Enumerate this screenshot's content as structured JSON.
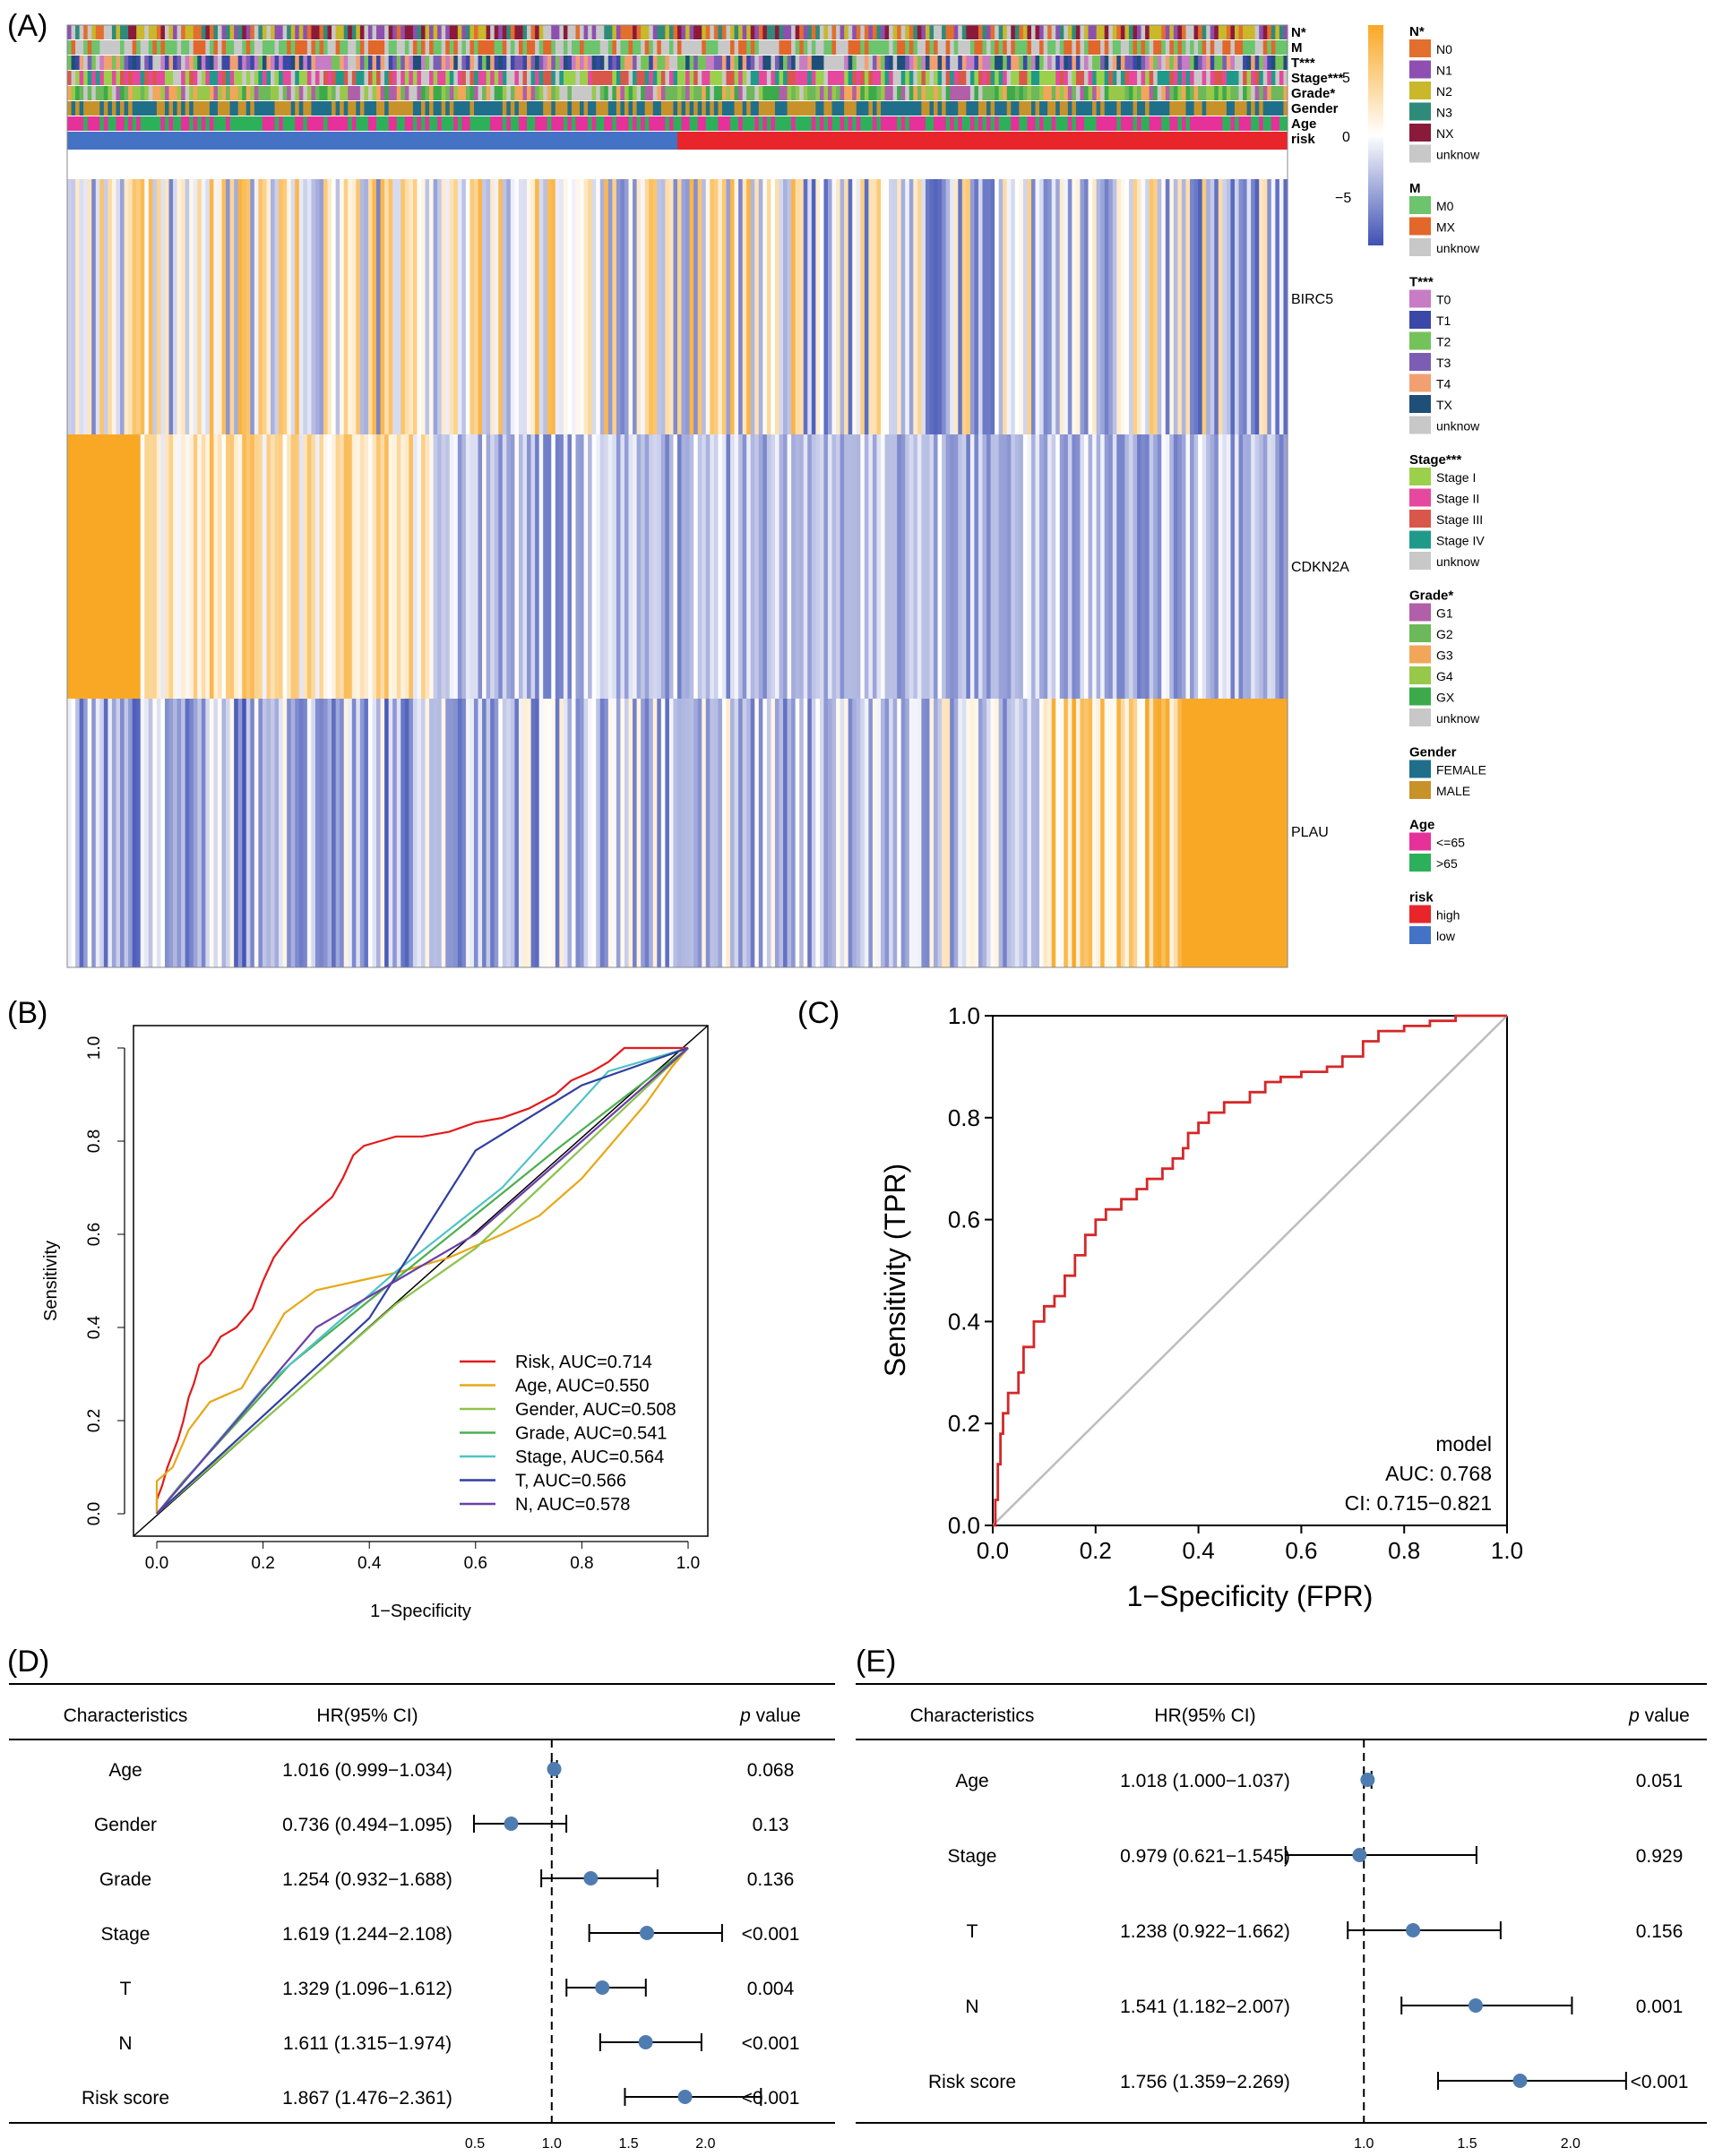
{
  "colors": {
    "hm_high": "#F9A825",
    "hm_mid": "#FFFFFF",
    "hm_low": "#3F51B5",
    "risk_high": "#E8252A",
    "risk_low": "#4472C4",
    "forest_point": "#4F7CB0",
    "roc_c": "#D62728",
    "diag_c": "#BDBDBD"
  },
  "panels": {
    "a": "(A)",
    "b": "(B)",
    "c": "(C)",
    "d": "(D)",
    "e": "(E)"
  },
  "heatmap": {
    "annotation_rows": [
      "N*",
      "M",
      "T***",
      "Stage***",
      "Grade*",
      "Gender",
      "Age",
      "risk"
    ],
    "genes": [
      "BIRC5",
      "CDKN2A",
      "PLAU"
    ],
    "colorbar_ticks": [
      "5",
      "0",
      "−5"
    ],
    "legend": [
      {
        "title": "N*",
        "items": [
          {
            "label": "N0",
            "color": "#E26F2E"
          },
          {
            "label": "N1",
            "color": "#8E4FB0"
          },
          {
            "label": "N2",
            "color": "#C8B82A"
          },
          {
            "label": "N3",
            "color": "#2E8B7A"
          },
          {
            "label": "NX",
            "color": "#8B1A3A"
          },
          {
            "label": "unknow",
            "color": "#C8C8C8"
          }
        ]
      },
      {
        "title": "M",
        "items": [
          {
            "label": "M0",
            "color": "#6CC46C"
          },
          {
            "label": "MX",
            "color": "#E2672A"
          },
          {
            "label": "unknow",
            "color": "#C8C8C8"
          }
        ]
      },
      {
        "title": "T***",
        "items": [
          {
            "label": "T0",
            "color": "#C77CC4"
          },
          {
            "label": "T1",
            "color": "#3A48A8"
          },
          {
            "label": "T2",
            "color": "#76C25A"
          },
          {
            "label": "T3",
            "color": "#7B5EB4"
          },
          {
            "label": "T4",
            "color": "#F2A072"
          },
          {
            "label": "TX",
            "color": "#1F4E79"
          },
          {
            "label": "unknow",
            "color": "#C8C8C8"
          }
        ]
      },
      {
        "title": "Stage***",
        "items": [
          {
            "label": "Stage I",
            "color": "#9BD14A"
          },
          {
            "label": "Stage II",
            "color": "#E6489E"
          },
          {
            "label": "Stage III",
            "color": "#D9574A"
          },
          {
            "label": "Stage IV",
            "color": "#1F9A8A"
          },
          {
            "label": "unknow",
            "color": "#C8C8C8"
          }
        ]
      },
      {
        "title": "Grade*",
        "items": [
          {
            "label": "G1",
            "color": "#B05FA8"
          },
          {
            "label": "G2",
            "color": "#6DB85A"
          },
          {
            "label": "G3",
            "color": "#F2A65A"
          },
          {
            "label": "G4",
            "color": "#98C84A"
          },
          {
            "label": "GX",
            "color": "#3CAA4A"
          },
          {
            "label": "unknow",
            "color": "#C8C8C8"
          }
        ]
      },
      {
        "title": "Gender",
        "items": [
          {
            "label": "FEMALE",
            "color": "#1F6F8B"
          },
          {
            "label": "MALE",
            "color": "#C8922A"
          }
        ]
      },
      {
        "title": "Age",
        "items": [
          {
            "label": "<=65",
            "color": "#E6309A"
          },
          {
            "label": ">65",
            "color": "#2DB05A"
          }
        ]
      },
      {
        "title": "risk",
        "items": [
          {
            "label": "high",
            "color": "#E8252A"
          },
          {
            "label": "low",
            "color": "#4472C4"
          }
        ]
      }
    ]
  },
  "chart_data": [
    {
      "id": "roc_b",
      "type": "line",
      "xlabel": "1−Specificity",
      "ylabel": "Sensitivity",
      "xlim": [
        0,
        1
      ],
      "ylim": [
        0,
        1
      ],
      "xticks": [
        "0.0",
        "0.2",
        "0.4",
        "0.6",
        "0.8",
        "1.0"
      ],
      "yticks": [
        "0.0",
        "0.2",
        "0.4",
        "0.6",
        "0.8",
        "1.0"
      ],
      "legend_position": "bottom-right",
      "series": [
        {
          "name": "Risk, AUC=0.714",
          "color": "#E31A1C",
          "points": [
            [
              0,
              0
            ],
            [
              0,
              0.03
            ],
            [
              0.01,
              0.06
            ],
            [
              0.02,
              0.1
            ],
            [
              0.03,
              0.13
            ],
            [
              0.04,
              0.16
            ],
            [
              0.05,
              0.2
            ],
            [
              0.06,
              0.25
            ],
            [
              0.07,
              0.28
            ],
            [
              0.08,
              0.32
            ],
            [
              0.1,
              0.34
            ],
            [
              0.12,
              0.38
            ],
            [
              0.15,
              0.4
            ],
            [
              0.18,
              0.44
            ],
            [
              0.2,
              0.5
            ],
            [
              0.22,
              0.55
            ],
            [
              0.24,
              0.58
            ],
            [
              0.27,
              0.62
            ],
            [
              0.3,
              0.65
            ],
            [
              0.33,
              0.68
            ],
            [
              0.35,
              0.72
            ],
            [
              0.37,
              0.77
            ],
            [
              0.39,
              0.79
            ],
            [
              0.42,
              0.8
            ],
            [
              0.45,
              0.81
            ],
            [
              0.5,
              0.81
            ],
            [
              0.55,
              0.82
            ],
            [
              0.6,
              0.84
            ],
            [
              0.65,
              0.85
            ],
            [
              0.7,
              0.87
            ],
            [
              0.75,
              0.9
            ],
            [
              0.78,
              0.93
            ],
            [
              0.82,
              0.95
            ],
            [
              0.85,
              0.97
            ],
            [
              0.88,
              1.0
            ],
            [
              1.0,
              1.0
            ]
          ]
        },
        {
          "name": "Age, AUC=0.550",
          "color": "#E6A817",
          "points": [
            [
              0,
              0
            ],
            [
              0,
              0.07
            ],
            [
              0.03,
              0.1
            ],
            [
              0.06,
              0.18
            ],
            [
              0.1,
              0.24
            ],
            [
              0.16,
              0.27
            ],
            [
              0.24,
              0.43
            ],
            [
              0.3,
              0.48
            ],
            [
              0.38,
              0.5
            ],
            [
              0.46,
              0.52
            ],
            [
              0.55,
              0.55
            ],
            [
              0.65,
              0.6
            ],
            [
              0.72,
              0.64
            ],
            [
              0.8,
              0.72
            ],
            [
              0.86,
              0.8
            ],
            [
              0.92,
              0.88
            ],
            [
              0.97,
              0.96
            ],
            [
              1.0,
              1.0
            ]
          ]
        },
        {
          "name": "Gender, AUC=0.508",
          "color": "#8BC34A",
          "points": [
            [
              0,
              0
            ],
            [
              0.45,
              0.45
            ],
            [
              0.6,
              0.57
            ],
            [
              1.0,
              1.0
            ]
          ]
        },
        {
          "name": "Grade, AUC=0.541",
          "color": "#4CAF50",
          "points": [
            [
              0,
              0
            ],
            [
              0.05,
              0.07
            ],
            [
              0.25,
              0.32
            ],
            [
              0.5,
              0.55
            ],
            [
              0.75,
              0.78
            ],
            [
              1.0,
              1.0
            ]
          ]
        },
        {
          "name": "Stage, AUC=0.564",
          "color": "#4FC3C8",
          "points": [
            [
              0,
              0
            ],
            [
              0.2,
              0.27
            ],
            [
              0.45,
              0.52
            ],
            [
              0.65,
              0.7
            ],
            [
              0.85,
              0.95
            ],
            [
              1.0,
              1.0
            ]
          ]
        },
        {
          "name": "T, AUC=0.566",
          "color": "#2F3FA0",
          "points": [
            [
              0,
              0
            ],
            [
              0.4,
              0.42
            ],
            [
              0.6,
              0.78
            ],
            [
              0.8,
              0.92
            ],
            [
              1.0,
              1.0
            ]
          ]
        },
        {
          "name": "N, AUC=0.578",
          "color": "#6A3FA8",
          "points": [
            [
              0,
              0
            ],
            [
              0.3,
              0.4
            ],
            [
              0.45,
              0.5
            ],
            [
              0.6,
              0.6
            ],
            [
              1.0,
              1.0
            ]
          ]
        }
      ]
    },
    {
      "id": "roc_c",
      "type": "line",
      "xlabel": "1−Specificity (FPR)",
      "ylabel": "Sensitivity (TPR)",
      "xlim": [
        0,
        1
      ],
      "ylim": [
        0,
        1
      ],
      "xticks": [
        "0.0",
        "0.2",
        "0.4",
        "0.6",
        "0.8",
        "1.0"
      ],
      "yticks": [
        "0.0",
        "0.2",
        "0.4",
        "0.6",
        "0.8",
        "1.0"
      ],
      "annotation": {
        "title": "model",
        "auc": "AUC: 0.768",
        "ci": "CI: 0.715−0.821"
      },
      "series": [
        {
          "name": "model",
          "color": "#D62728",
          "points": [
            [
              0,
              0
            ],
            [
              0.005,
              0.05
            ],
            [
              0.01,
              0.12
            ],
            [
              0.015,
              0.18
            ],
            [
              0.02,
              0.22
            ],
            [
              0.03,
              0.26
            ],
            [
              0.05,
              0.3
            ],
            [
              0.06,
              0.35
            ],
            [
              0.08,
              0.4
            ],
            [
              0.1,
              0.43
            ],
            [
              0.12,
              0.45
            ],
            [
              0.14,
              0.49
            ],
            [
              0.16,
              0.53
            ],
            [
              0.18,
              0.57
            ],
            [
              0.2,
              0.6
            ],
            [
              0.22,
              0.62
            ],
            [
              0.25,
              0.64
            ],
            [
              0.28,
              0.66
            ],
            [
              0.3,
              0.68
            ],
            [
              0.33,
              0.7
            ],
            [
              0.35,
              0.72
            ],
            [
              0.37,
              0.74
            ],
            [
              0.38,
              0.77
            ],
            [
              0.4,
              0.79
            ],
            [
              0.42,
              0.81
            ],
            [
              0.45,
              0.83
            ],
            [
              0.5,
              0.85
            ],
            [
              0.53,
              0.87
            ],
            [
              0.56,
              0.88
            ],
            [
              0.6,
              0.89
            ],
            [
              0.65,
              0.9
            ],
            [
              0.68,
              0.92
            ],
            [
              0.72,
              0.95
            ],
            [
              0.75,
              0.97
            ],
            [
              0.8,
              0.98
            ],
            [
              0.85,
              0.99
            ],
            [
              0.9,
              1.0
            ],
            [
              1.0,
              1.0
            ]
          ]
        }
      ]
    },
    {
      "id": "forest_d",
      "type": "scatter",
      "title": "",
      "columns": [
        "Characteristics",
        "HR(95% CI)",
        "p value"
      ],
      "reference_line": 1.0,
      "xlim": [
        0.5,
        2.4
      ],
      "xticks": [
        "0.5",
        "1.0",
        "1.5",
        "2.0"
      ],
      "rows": [
        {
          "label": "Age",
          "hr_text": "1.016 (0.999−1.034)",
          "p": "0.068",
          "hr": 1.016,
          "lo": 0.999,
          "hi": 1.034
        },
        {
          "label": "Gender",
          "hr_text": "0.736 (0.494−1.095)",
          "p": "0.13",
          "hr": 0.736,
          "lo": 0.494,
          "hi": 1.095
        },
        {
          "label": "Grade",
          "hr_text": "1.254 (0.932−1.688)",
          "p": "0.136",
          "hr": 1.254,
          "lo": 0.932,
          "hi": 1.688
        },
        {
          "label": "Stage",
          "hr_text": "1.619 (1.244−2.108)",
          "p": "<0.001",
          "hr": 1.619,
          "lo": 1.244,
          "hi": 2.108
        },
        {
          "label": "T",
          "hr_text": "1.329 (1.096−1.612)",
          "p": "0.004",
          "hr": 1.329,
          "lo": 1.096,
          "hi": 1.612
        },
        {
          "label": "N",
          "hr_text": "1.611 (1.315−1.974)",
          "p": "<0.001",
          "hr": 1.611,
          "lo": 1.315,
          "hi": 1.974
        },
        {
          "label": "Risk score",
          "hr_text": "1.867 (1.476−2.361)",
          "p": "<0.001",
          "hr": 1.867,
          "lo": 1.476,
          "hi": 2.361
        }
      ]
    },
    {
      "id": "forest_e",
      "type": "scatter",
      "title": "",
      "columns": [
        "Characteristics",
        "HR(95% CI)",
        "p value"
      ],
      "reference_line": 1.0,
      "xlim": [
        0.6,
        2.3
      ],
      "xticks": [
        "1.0",
        "1.5",
        "2.0"
      ],
      "rows": [
        {
          "label": "Age",
          "hr_text": "1.018 (1.000−1.037)",
          "p": "0.051",
          "hr": 1.018,
          "lo": 1.0,
          "hi": 1.037
        },
        {
          "label": "Stage",
          "hr_text": "0.979 (0.621−1.545)",
          "p": "0.929",
          "hr": 0.979,
          "lo": 0.621,
          "hi": 1.545
        },
        {
          "label": "T",
          "hr_text": "1.238 (0.922−1.662)",
          "p": "0.156",
          "hr": 1.238,
          "lo": 0.922,
          "hi": 1.662
        },
        {
          "label": "N",
          "hr_text": "1.541 (1.182−2.007)",
          "p": "0.001",
          "hr": 1.541,
          "lo": 1.182,
          "hi": 2.007
        },
        {
          "label": "Risk score",
          "hr_text": "1.756 (1.359−2.269)",
          "p": "<0.001",
          "hr": 1.756,
          "lo": 1.359,
          "hi": 2.269
        }
      ]
    }
  ]
}
